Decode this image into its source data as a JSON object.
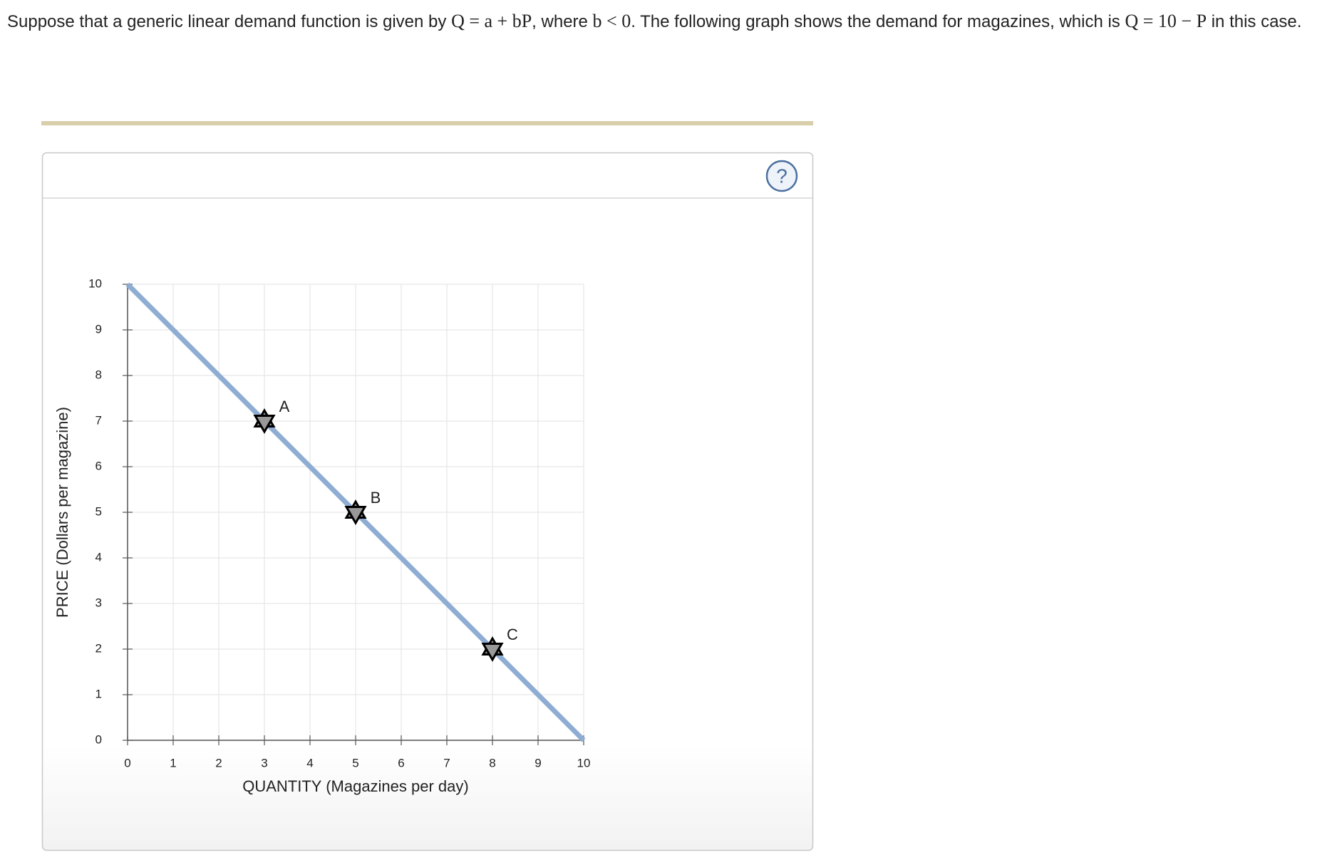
{
  "intro": [
    "Suppose that a generic linear demand function is given by ",
    "Q = a + bP",
    ", where ",
    "b < 0",
    ". The following graph shows the demand for magazines, which is ",
    "Q = 10 − P",
    " in this case."
  ],
  "help_icon": "?",
  "chart_data": {
    "type": "line",
    "xlabel": "QUANTITY (Magazines per day)",
    "ylabel": "PRICE (Dollars per magazine)",
    "xlim": [
      0,
      10
    ],
    "ylim": [
      0,
      10
    ],
    "xticks": [
      0,
      1,
      2,
      3,
      4,
      5,
      6,
      7,
      8,
      9,
      10
    ],
    "yticks": [
      0,
      1,
      2,
      3,
      4,
      5,
      6,
      7,
      8,
      9,
      10
    ],
    "grid": true,
    "series": [
      {
        "color": "#8fadd2",
        "x": [
          0,
          10
        ],
        "values": [
          10,
          0
        ]
      }
    ],
    "points": {
      "labels": [
        "A",
        "B",
        "C"
      ],
      "x": [
        3,
        5,
        8
      ],
      "y": [
        7,
        5,
        2
      ],
      "color": "#999999"
    }
  }
}
